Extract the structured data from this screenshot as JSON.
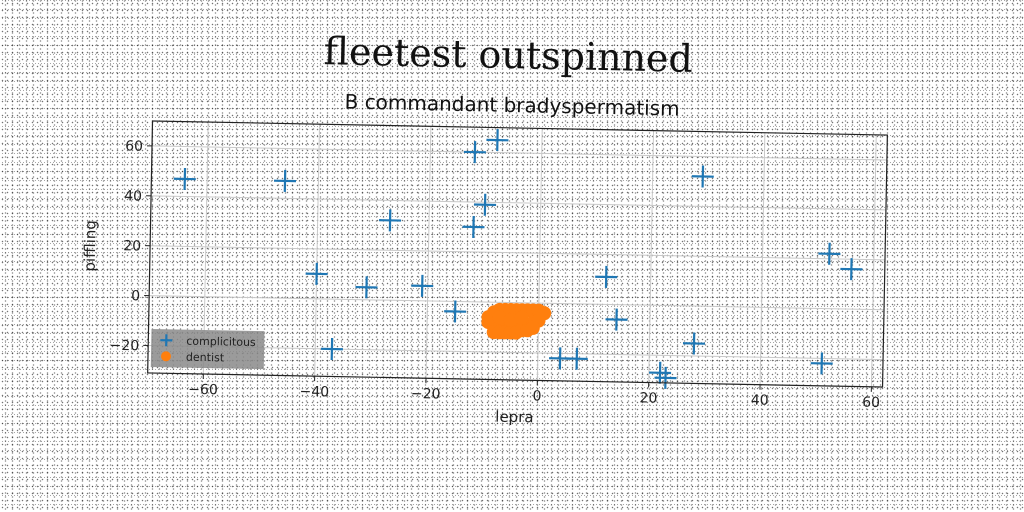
{
  "chart_data": {
    "type": "scatter",
    "title": "fleetest outspinned",
    "subtitle": "B commandant bradyspermatism",
    "xlabel": "lepra",
    "ylabel": "piffling",
    "xlim": [
      -70,
      62
    ],
    "ylim": [
      -31,
      70
    ],
    "xticks": [
      -60,
      -40,
      -20,
      0,
      20,
      40,
      60
    ],
    "yticks": [
      -20,
      0,
      20,
      40,
      60
    ],
    "grid": true,
    "legend_position": "bottom-left",
    "series": [
      {
        "name": "complicitous",
        "marker": "plus",
        "color": "#1f77b4",
        "x": [
          -64,
          -46,
          -27,
          -12,
          -10,
          -12,
          -8,
          -40,
          -31,
          -21,
          -15,
          -37,
          4,
          7,
          12,
          14,
          22,
          23,
          28,
          29,
          52,
          56,
          51
        ],
        "y": [
          47,
          47,
          32,
          30,
          39,
          60,
          65,
          10,
          5,
          6,
          -4,
          -20,
          -22,
          -22,
          11,
          -6,
          -27,
          -29,
          -15,
          52,
          22,
          16,
          -22
        ]
      },
      {
        "name": "dentist",
        "marker": "circle",
        "color": "#ff7f0e",
        "x": [
          -9,
          -8,
          -7,
          -6,
          -5,
          -4,
          -3,
          -2,
          -1,
          0,
          1,
          -9,
          -8,
          -7,
          -6,
          -5,
          -4,
          -3,
          -2,
          -1,
          0,
          -8,
          -7,
          -6,
          -5,
          -4,
          -3,
          -2,
          -1,
          -7,
          -5,
          -3
        ],
        "y": [
          -6,
          -4,
          -3,
          -3,
          -3,
          -3,
          -3,
          -3,
          -3,
          -3,
          -4,
          -8,
          -9,
          -10,
          -10,
          -10,
          -10,
          -9,
          -9,
          -8,
          -7,
          -12,
          -12,
          -12,
          -12,
          -12,
          -11,
          -11,
          -10,
          -6,
          -7,
          -6
        ]
      }
    ]
  }
}
